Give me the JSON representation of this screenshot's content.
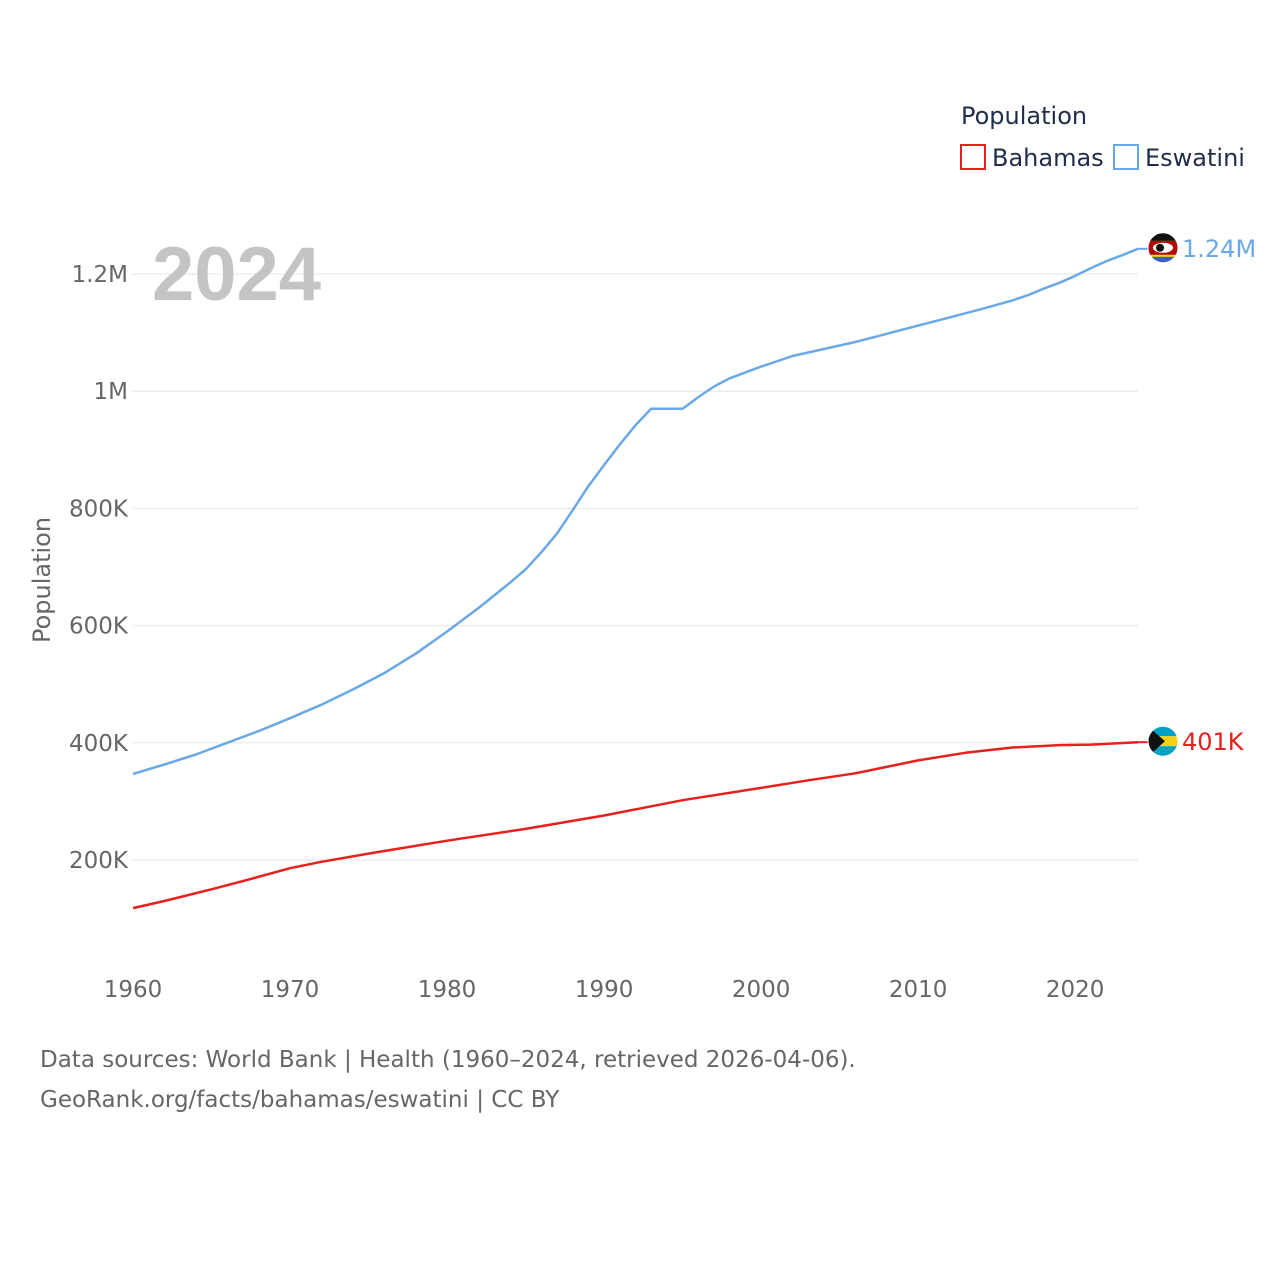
{
  "chart_data": {
    "type": "line",
    "title": "",
    "ylabel": "Population",
    "xlabel": "",
    "year_label": "2024",
    "legend_title": "Population",
    "xlim": [
      1960,
      2024
    ],
    "ylim": [
      0,
      1300000
    ],
    "x_ticks": [
      1960,
      1970,
      1980,
      1990,
      2000,
      2010,
      2020
    ],
    "x_tick_labels": [
      "1960",
      "1970",
      "1980",
      "1990",
      "2000",
      "2010",
      "2020"
    ],
    "y_ticks": [
      200000,
      400000,
      600000,
      800000,
      1000000,
      1200000
    ],
    "y_tick_labels": [
      "200K",
      "400K",
      "600K",
      "800K",
      "1M",
      "1.2M"
    ],
    "grid": true,
    "legend_position": "top-right",
    "series": [
      {
        "name": "Bahamas",
        "color": "#e8201d",
        "end_label": "401K",
        "flag": "bahamas-flag",
        "x": [
          1960,
          1962,
          1965,
          1967,
          1970,
          1972,
          1975,
          1980,
          1985,
          1990,
          1995,
          2000,
          2003,
          2006,
          2010,
          2013,
          2016,
          2019,
          2021,
          2024
        ],
        "values": [
          118000,
          130000,
          150000,
          164000,
          186000,
          197000,
          211000,
          233000,
          253000,
          276000,
          302000,
          323000,
          336000,
          348000,
          370000,
          383000,
          392000,
          396000,
          397000,
          401000
        ]
      },
      {
        "name": "Eswatini",
        "color": "#6aa8e6",
        "end_label": "1.24M",
        "flag": "eswatini-flag",
        "x": [
          1960,
          1962,
          1964,
          1966,
          1968,
          1970,
          1972,
          1974,
          1976,
          1978,
          1980,
          1982,
          1984,
          1985,
          1986,
          1987,
          1988,
          1989,
          1990,
          1991,
          1992,
          1993,
          1994,
          1995,
          1996,
          1997,
          1998,
          2000,
          2002,
          2004,
          2006,
          2008,
          2010,
          2012,
          2014,
          2016,
          2017,
          2018,
          2019,
          2020,
          2021,
          2022,
          2023,
          2024
        ],
        "values": [
          347000,
          363000,
          380000,
          400000,
          420000,
          442000,
          465000,
          491000,
          519000,
          552000,
          590000,
          630000,
          673000,
          696000,
          725000,
          757000,
          797000,
          838000,
          874000,
          909000,
          942000,
          970000,
          970000,
          970000,
          990000,
          1008000,
          1022000,
          1042000,
          1060000,
          1072000,
          1084000,
          1098000,
          1112000,
          1126000,
          1140000,
          1155000,
          1164000,
          1175000,
          1185000,
          1197000,
          1210000,
          1222000,
          1232000,
          1243000
        ]
      }
    ]
  },
  "footer": {
    "line1": "Data sources: World Bank | Health (1960–2024, retrieved 2026-04-06).",
    "line2": "GeoRank.org/facts/bahamas/eswatini | CC BY"
  }
}
